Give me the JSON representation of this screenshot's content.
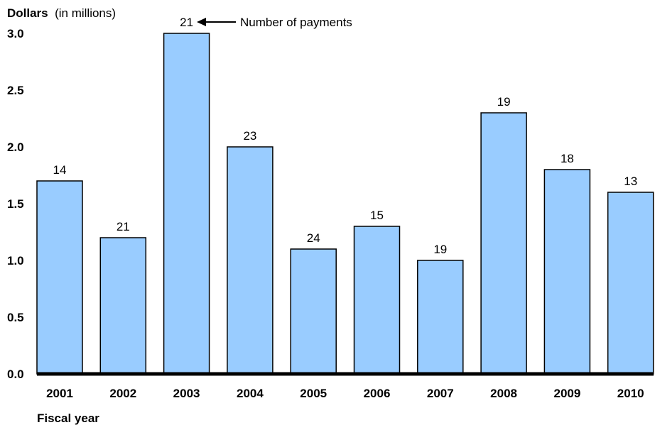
{
  "chart_data": {
    "type": "bar",
    "categories": [
      "2001",
      "2002",
      "2003",
      "2004",
      "2005",
      "2006",
      "2007",
      "2008",
      "2009",
      "2010"
    ],
    "values": [
      1.7,
      1.2,
      3.0,
      2.0,
      1.1,
      1.3,
      1.0,
      2.3,
      1.8,
      1.6
    ],
    "data_labels": [
      "14",
      "21",
      "21",
      "23",
      "24",
      "15",
      "19",
      "19",
      "18",
      "13"
    ],
    "ylabel_bold": "Dollars",
    "ylabel_unit": "(in millions)",
    "xlabel": "Fiscal year",
    "yticks": [
      "0.0",
      "0.5",
      "1.0",
      "1.5",
      "2.0",
      "2.5",
      "3.0"
    ],
    "ytick_values": [
      0,
      0.5,
      1.0,
      1.5,
      2.0,
      2.5,
      3.0
    ],
    "ylim": [
      0,
      3.0
    ],
    "annotation": "Number of payments",
    "bar_color": "#99ccff",
    "bar_outline": "#000000",
    "grid": false,
    "legend": "none"
  }
}
